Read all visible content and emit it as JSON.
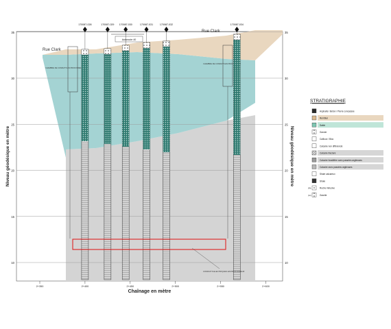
{
  "section": {
    "y_axis_label": "Niveau géodésique en mètre",
    "x_axis_label": "Chaînage en mètre",
    "elevation_ticks": [
      {
        "value": 10,
        "label": "10"
      },
      {
        "value": 15,
        "label": "15"
      },
      {
        "value": 20,
        "label": "20"
      },
      {
        "value": 25,
        "label": "25"
      },
      {
        "value": 30,
        "label": "30"
      },
      {
        "value": 35,
        "label": "35"
      },
      {
        "value": 40,
        "label": "40"
      }
    ],
    "chainage_ticks": [
      {
        "value": 350,
        "label": "2+350"
      },
      {
        "value": 400,
        "label": "2+400"
      },
      {
        "value": 450,
        "label": "2+450"
      },
      {
        "value": 500,
        "label": "2+500"
      },
      {
        "value": 550,
        "label": "2+550"
      },
      {
        "value": 600,
        "label": "2+600"
      }
    ],
    "street_labels": [
      {
        "label": "Rue Clark",
        "side": "left"
      },
      {
        "label": "Rue Clark",
        "side": "right"
      }
    ],
    "boreholes": [
      {
        "id": "170087-028",
        "chainage": 400
      },
      {
        "id": "170087-029",
        "chainage": 425
      },
      {
        "id": "170087-030",
        "chainage": 445
      },
      {
        "id": "170087-031",
        "chainage": 468
      },
      {
        "id": "170087-032",
        "chainage": 490
      },
      {
        "id": "170087-034",
        "chainage": 568
      }
    ],
    "dimension_label": "Autoroute 40",
    "left_chamber_note": "CHAMBRE DE CONDUITS EN PROFONDEUR",
    "right_chamber_note": "CHAMBRE DE CONDUITS EN PROFONDEUR",
    "highlight_note": "CONDUITS ELECTRIQUES EN PROFONDEUR"
  },
  "legend": {
    "title": "STRATIGRAPHIE",
    "items": [
      {
        "label": "Asphalte / Béton / Pierre concassée",
        "swatch": "asphalt",
        "prefix": ""
      },
      {
        "label": "Remblai",
        "swatch": "fill",
        "prefix": ""
      },
      {
        "label": "Sable",
        "swatch": "sand",
        "prefix": ""
      },
      {
        "label": "Gravier",
        "swatch": "gravel",
        "prefix": ""
      },
      {
        "label": "Cailloux / Bloc",
        "swatch": "cobble",
        "prefix": ""
      },
      {
        "label": "Calcaire non différencié",
        "swatch": "limestone",
        "prefix": ""
      },
      {
        "label": "Calcaire fracturé",
        "swatch": "fractured",
        "prefix": ""
      },
      {
        "label": "Calcaire fossilifère avec passées argileuses",
        "swatch": "fossil",
        "prefix": ""
      },
      {
        "label": "Calcaire avec passées argileuses",
        "swatch": "clayey",
        "prefix": ""
      },
      {
        "label": "Shale calcareux",
        "swatch": "shalecalc",
        "prefix": ""
      },
      {
        "label": "Shale",
        "swatch": "shale",
        "prefix": ""
      },
      {
        "label": "Roche intrusive",
        "swatch": "intrusive",
        "prefix": "(RI)"
      },
      {
        "label": "Granite",
        "swatch": "granite",
        "prefix": "(Gr)"
      }
    ]
  },
  "colors": {
    "fill_zone": "#e9d7bf",
    "sand_zone": "#9fd1d1",
    "rock_zone": "#d4d4d4",
    "grid": "#9a9a9a",
    "highlight": "#e01010",
    "borehole_rock": "#c8c8c8",
    "borehole_sand": "#4c8f85"
  }
}
